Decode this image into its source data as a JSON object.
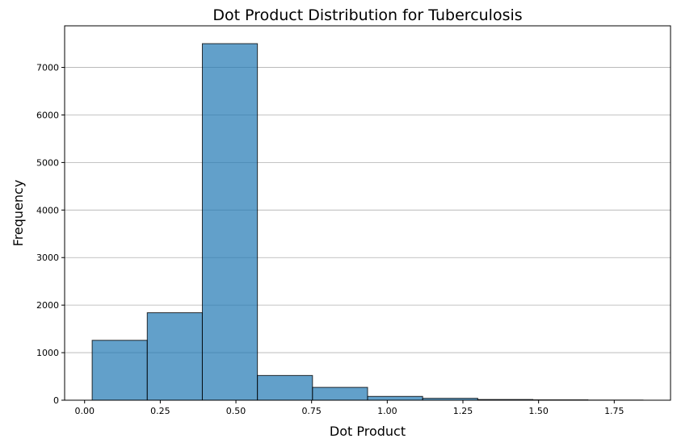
{
  "chart_data": {
    "type": "bar",
    "title": "Dot Product Distribution for Tuberculosis",
    "xlabel": "Dot Product",
    "ylabel": "Frequency",
    "bin_edges": [
      0.025,
      0.207,
      0.389,
      0.571,
      0.753,
      0.935,
      1.117,
      1.299,
      1.481,
      1.663,
      1.845
    ],
    "values": [
      1260,
      1840,
      7500,
      520,
      270,
      80,
      40,
      15,
      8,
      3
    ],
    "xlim": [
      -0.066,
      1.936
    ],
    "ylim": [
      0,
      7875
    ],
    "xticks": [
      0.0,
      0.25,
      0.5,
      0.75,
      1.0,
      1.25,
      1.5,
      1.75
    ],
    "xtick_labels": [
      "0.00",
      "0.25",
      "0.50",
      "0.75",
      "1.00",
      "1.25",
      "1.50",
      "1.75"
    ],
    "yticks": [
      0,
      1000,
      2000,
      3000,
      4000,
      5000,
      6000,
      7000
    ],
    "ytick_labels": [
      "0",
      "1000",
      "2000",
      "3000",
      "4000",
      "5000",
      "6000",
      "7000"
    ],
    "grid": "y",
    "bar_color": "#1f77b4",
    "bar_edge_color": "#000000",
    "grid_color": "#b0b0b0"
  }
}
